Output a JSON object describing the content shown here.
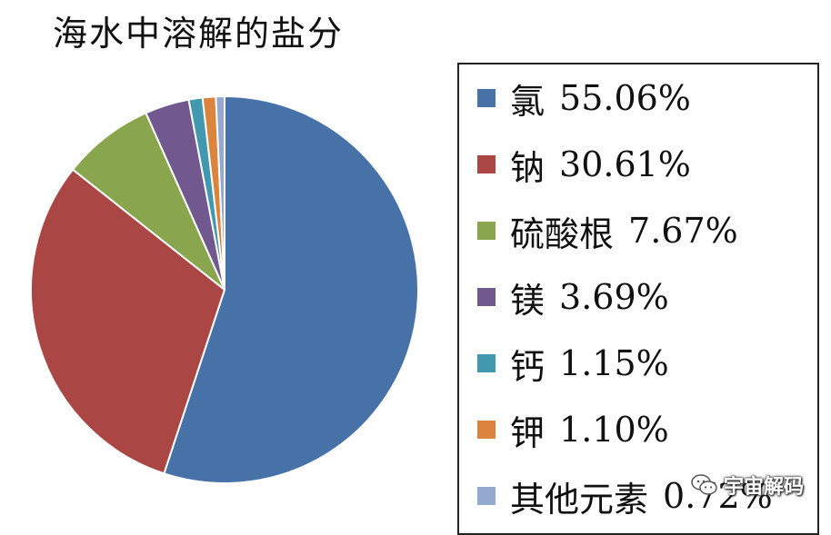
{
  "chart_data": {
    "type": "pie",
    "title": "海水中溶解的盐分",
    "legend_position": "right",
    "slices": [
      {
        "label": "氯",
        "value": 55.06,
        "display": "55.06%",
        "color": "#4672A8"
      },
      {
        "label": "钠",
        "value": 30.61,
        "display": "30.61%",
        "color": "#AA4643"
      },
      {
        "label": "硫酸根",
        "value": 7.67,
        "display": "7.67%",
        "color": "#89A54E"
      },
      {
        "label": "镁",
        "value": 3.69,
        "display": "3.69%",
        "color": "#71588F"
      },
      {
        "label": "钙",
        "value": 1.15,
        "display": "1.15%",
        "color": "#4198AF"
      },
      {
        "label": "钾",
        "value": 1.1,
        "display": "1.10%",
        "color": "#DB843D"
      },
      {
        "label": "其他元素",
        "value": 0.72,
        "display": "0.72%",
        "color": "#93A9CF"
      }
    ]
  },
  "watermark": {
    "text": "宇宙解码",
    "icon": "wechat-icon"
  }
}
